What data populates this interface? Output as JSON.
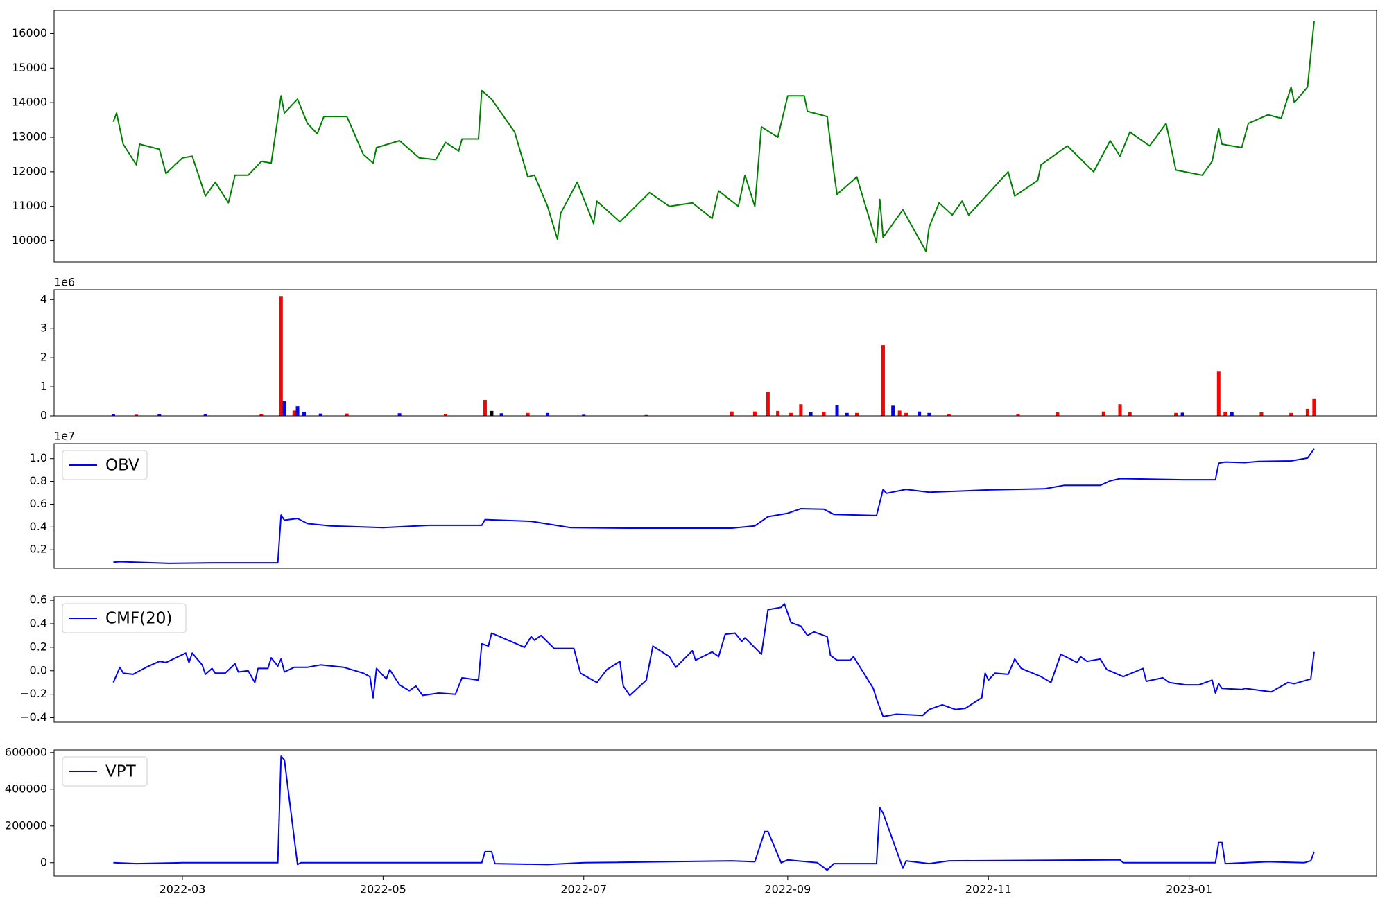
{
  "chart_data": [
    {
      "type": "line",
      "xlim": [
        "2022-01-21",
        "2023-02-27"
      ],
      "ylim": [
        9390,
        16670
      ],
      "yticks": [
        10000,
        11000,
        12000,
        13000,
        14000,
        15000,
        16000
      ],
      "x": [
        "2022-02-08",
        "2022-02-09",
        "2022-02-11",
        "2022-02-15",
        "2022-02-16",
        "2022-02-22",
        "2022-02-24",
        "2022-03-01",
        "2022-03-04",
        "2022-03-08",
        "2022-03-11",
        "2022-03-15",
        "2022-03-17",
        "2022-03-21",
        "2022-03-25",
        "2022-03-28",
        "2022-03-31",
        "2022-04-01",
        "2022-04-05",
        "2022-04-08",
        "2022-04-11",
        "2022-04-13",
        "2022-04-20",
        "2022-04-25",
        "2022-04-28",
        "2022-04-29",
        "2022-05-06",
        "2022-05-12",
        "2022-05-17",
        "2022-05-20",
        "2022-05-24",
        "2022-05-25",
        "2022-05-30",
        "2022-05-31",
        "2022-06-03",
        "2022-06-10",
        "2022-06-14",
        "2022-06-16",
        "2022-06-20",
        "2022-06-23",
        "2022-06-24",
        "2022-06-29",
        "2022-07-04",
        "2022-07-05",
        "2022-07-12",
        "2022-07-21",
        "2022-07-27",
        "2022-08-03",
        "2022-08-09",
        "2022-08-11",
        "2022-08-17",
        "2022-08-19",
        "2022-08-22",
        "2022-08-24",
        "2022-08-29",
        "2022-09-01",
        "2022-09-06",
        "2022-09-07",
        "2022-09-13",
        "2022-09-15",
        "2022-09-16",
        "2022-09-22",
        "2022-09-28",
        "2022-09-29",
        "2022-09-30",
        "2022-10-06",
        "2022-10-13",
        "2022-10-14",
        "2022-10-17",
        "2022-10-21",
        "2022-10-24",
        "2022-10-26",
        "2022-11-07",
        "2022-11-09",
        "2022-11-16",
        "2022-11-17",
        "2022-11-25",
        "2022-12-03",
        "2022-12-08",
        "2022-12-11",
        "2022-12-14",
        "2022-12-20",
        "2022-12-25",
        "2022-12-28",
        "2023-01-05",
        "2023-01-08",
        "2023-01-10",
        "2023-01-11",
        "2023-01-17",
        "2023-01-19",
        "2023-01-25",
        "2023-01-29",
        "2023-02-01",
        "2023-02-02",
        "2023-02-06",
        "2023-02-08"
      ],
      "series": [
        {
          "color": "#008000",
          "values": [
            13450,
            13700,
            12800,
            12200,
            12800,
            12650,
            11950,
            12400,
            12450,
            11300,
            11700,
            11100,
            11900,
            11900,
            12300,
            12250,
            14200,
            13700,
            14100,
            13400,
            13100,
            13600,
            13600,
            12500,
            12250,
            12700,
            12900,
            12400,
            12350,
            12850,
            12600,
            12950,
            12950,
            14350,
            14100,
            13150,
            11850,
            11900,
            11000,
            10050,
            10800,
            11700,
            10500,
            11150,
            10550,
            11400,
            11000,
            11100,
            10650,
            11450,
            11000,
            11900,
            11000,
            13300,
            13000,
            14200,
            14200,
            13750,
            13600,
            12000,
            11350,
            11850,
            9950,
            11200,
            10100,
            10900,
            9700,
            10400,
            11100,
            10750,
            11150,
            10750,
            12000,
            11300,
            11750,
            12200,
            12750,
            12000,
            12900,
            12450,
            13150,
            12750,
            13400,
            12050,
            11900,
            12300,
            13250,
            12800,
            12700,
            13400,
            13650,
            13550,
            14450,
            14000,
            14450,
            16350
          ]
        }
      ]
    },
    {
      "type": "bar",
      "xlim": [
        "2022-01-21",
        "2023-02-27"
      ],
      "ylim": [
        0,
        4340000
      ],
      "offset_label": "1e6",
      "yticks": [
        0,
        {
          "value": 1000000,
          "label": "1"
        },
        {
          "value": 2000000,
          "label": "2"
        },
        {
          "value": 3000000,
          "label": "3"
        },
        {
          "value": 4000000,
          "label": "4"
        }
      ],
      "x": [
        "2022-02-08",
        "2022-02-15",
        "2022-02-22",
        "2022-03-08",
        "2022-03-25",
        "2022-03-31",
        "2022-04-01",
        "2022-04-04",
        "2022-04-05",
        "2022-04-07",
        "2022-04-12",
        "2022-04-20",
        "2022-05-06",
        "2022-05-20",
        "2022-06-01",
        "2022-06-03",
        "2022-06-06",
        "2022-06-14",
        "2022-06-20",
        "2022-07-01",
        "2022-07-20",
        "2022-08-15",
        "2022-08-22",
        "2022-08-26",
        "2022-08-29",
        "2022-09-02",
        "2022-09-05",
        "2022-09-08",
        "2022-09-12",
        "2022-09-16",
        "2022-09-19",
        "2022-09-22",
        "2022-09-30",
        "2022-10-03",
        "2022-10-05",
        "2022-10-07",
        "2022-10-11",
        "2022-10-14",
        "2022-10-20",
        "2022-11-10",
        "2022-11-22",
        "2022-12-06",
        "2022-12-11",
        "2022-12-14",
        "2022-12-28",
        "2022-12-30",
        "2023-01-10",
        "2023-01-12",
        "2023-01-14",
        "2023-01-23",
        "2023-02-01",
        "2023-02-06",
        "2023-02-08"
      ],
      "values": [
        70000,
        40000,
        60000,
        50000,
        50000,
        4120000,
        500000,
        180000,
        330000,
        140000,
        80000,
        80000,
        90000,
        50000,
        550000,
        170000,
        90000,
        100000,
        100000,
        40000,
        30000,
        150000,
        150000,
        820000,
        170000,
        100000,
        400000,
        120000,
        140000,
        360000,
        100000,
        100000,
        2430000,
        350000,
        180000,
        100000,
        150000,
        100000,
        50000,
        50000,
        120000,
        150000,
        400000,
        130000,
        100000,
        110000,
        1520000,
        140000,
        130000,
        120000,
        100000,
        240000,
        600000
      ],
      "colors": [
        "#0000ff",
        "#ff0000",
        "#0000ff",
        "#0000ff",
        "#ff0000",
        "#ff0000",
        "#0000ff",
        "#ff0000",
        "#0000ff",
        "#0000ff",
        "#0000ff",
        "#ff0000",
        "#0000ff",
        "#ff0000",
        "#ff0000",
        "#000000",
        "#0000ff",
        "#ff0000",
        "#0000ff",
        "#0000ff",
        "#ff0000",
        "#ff0000",
        "#ff0000",
        "#ff0000",
        "#ff0000",
        "#ff0000",
        "#ff0000",
        "#0000ff",
        "#ff0000",
        "#0000ff",
        "#0000ff",
        "#ff0000",
        "#ff0000",
        "#0000ff",
        "#ff0000",
        "#ff0000",
        "#0000ff",
        "#0000ff",
        "#ff0000",
        "#ff0000",
        "#ff0000",
        "#ff0000",
        "#ff0000",
        "#ff0000",
        "#ff0000",
        "#0000ff",
        "#ff0000",
        "#ff0000",
        "#0000ff",
        "#ff0000",
        "#ff0000",
        "#ff0000",
        "#ff0000"
      ]
    },
    {
      "type": "line",
      "xlim": [
        "2022-01-21",
        "2023-02-27"
      ],
      "ylim": [
        370000,
        11320000
      ],
      "offset_label": "1e7",
      "yticks": [
        {
          "value": 2000000,
          "label": "0.2"
        },
        {
          "value": 4000000,
          "label": "0.4"
        },
        {
          "value": 6000000,
          "label": "0.6"
        },
        {
          "value": 8000000,
          "label": "0.8"
        },
        {
          "value": 10000000,
          "label": "1.0"
        }
      ],
      "x": [
        "2022-02-08",
        "2022-02-10",
        "2022-02-25",
        "2022-03-10",
        "2022-03-30",
        "2022-03-31",
        "2022-04-01",
        "2022-04-05",
        "2022-04-08",
        "2022-04-15",
        "2022-05-01",
        "2022-05-15",
        "2022-05-31",
        "2022-06-01",
        "2022-06-15",
        "2022-06-27",
        "2022-07-15",
        "2022-08-15",
        "2022-08-22",
        "2022-08-26",
        "2022-09-01",
        "2022-09-05",
        "2022-09-12",
        "2022-09-15",
        "2022-09-28",
        "2022-09-30",
        "2022-10-01",
        "2022-10-07",
        "2022-10-14",
        "2022-11-01",
        "2022-11-18",
        "2022-11-24",
        "2022-12-05",
        "2022-12-08",
        "2022-12-11",
        "2022-12-30",
        "2023-01-09",
        "2023-01-10",
        "2023-01-12",
        "2023-01-18",
        "2023-01-22",
        "2023-02-01",
        "2023-02-06",
        "2023-02-08"
      ],
      "series": [
        {
          "name": "OBV",
          "color": "#0000ff",
          "values": [
            900000,
            950000,
            800000,
            850000,
            850000,
            5050000,
            4600000,
            4750000,
            4300000,
            4100000,
            3950000,
            4150000,
            4150000,
            4650000,
            4500000,
            3950000,
            3900000,
            3900000,
            4100000,
            4900000,
            5200000,
            5600000,
            5550000,
            5100000,
            5000000,
            7300000,
            6950000,
            7300000,
            7050000,
            7250000,
            7350000,
            7650000,
            7650000,
            8050000,
            8250000,
            8150000,
            8150000,
            9600000,
            9700000,
            9650000,
            9750000,
            9800000,
            10050000,
            10850000
          ]
        }
      ]
    },
    {
      "type": "line",
      "xlim": [
        "2022-01-21",
        "2023-02-27"
      ],
      "ylim": [
        -0.438,
        0.63
      ],
      "yticks": [
        {
          "value": -0.4,
          "label": "−0.4"
        },
        {
          "value": -0.2,
          "label": "−0.2"
        },
        {
          "value": 0,
          "label": "0.0"
        },
        0.2,
        0.4,
        0.6
      ],
      "x": [
        "2022-02-08",
        "2022-02-10",
        "2022-02-11",
        "2022-02-14",
        "2022-02-18",
        "2022-02-22",
        "2022-02-24",
        "2022-03-02",
        "2022-03-03",
        "2022-03-04",
        "2022-03-07",
        "2022-03-08",
        "2022-03-10",
        "2022-03-11",
        "2022-03-14",
        "2022-03-17",
        "2022-03-18",
        "2022-03-21",
        "2022-03-23",
        "2022-03-24",
        "2022-03-27",
        "2022-03-28",
        "2022-03-30",
        "2022-03-31",
        "2022-04-01",
        "2022-04-04",
        "2022-04-08",
        "2022-04-12",
        "2022-04-19",
        "2022-04-25",
        "2022-04-27",
        "2022-04-28",
        "2022-04-29",
        "2022-05-02",
        "2022-05-03",
        "2022-05-06",
        "2022-05-09",
        "2022-05-11",
        "2022-05-13",
        "2022-05-18",
        "2022-05-23",
        "2022-05-25",
        "2022-05-30",
        "2022-05-31",
        "2022-06-02",
        "2022-06-03",
        "2022-06-08",
        "2022-06-13",
        "2022-06-15",
        "2022-06-16",
        "2022-06-18",
        "2022-06-22",
        "2022-06-28",
        "2022-06-30",
        "2022-07-05",
        "2022-07-08",
        "2022-07-12",
        "2022-07-13",
        "2022-07-15",
        "2022-07-20",
        "2022-07-22",
        "2022-07-27",
        "2022-07-29",
        "2022-08-03",
        "2022-08-04",
        "2022-08-09",
        "2022-08-11",
        "2022-08-13",
        "2022-08-16",
        "2022-08-18",
        "2022-08-19",
        "2022-08-24",
        "2022-08-26",
        "2022-08-30",
        "2022-08-31",
        "2022-09-02",
        "2022-09-05",
        "2022-09-07",
        "2022-09-09",
        "2022-09-13",
        "2022-09-14",
        "2022-09-16",
        "2022-09-20",
        "2022-09-21",
        "2022-09-27",
        "2022-09-28",
        "2022-09-30",
        "2022-10-04",
        "2022-10-12",
        "2022-10-14",
        "2022-10-18",
        "2022-10-22",
        "2022-10-25",
        "2022-10-30",
        "2022-10-31",
        "2022-11-01",
        "2022-11-03",
        "2022-11-07",
        "2022-11-09",
        "2022-11-11",
        "2022-11-17",
        "2022-11-20",
        "2022-11-23",
        "2022-11-28",
        "2022-11-29",
        "2022-12-01",
        "2022-12-05",
        "2022-12-07",
        "2022-12-12",
        "2022-12-18",
        "2022-12-19",
        "2022-12-24",
        "2022-12-26",
        "2022-12-31",
        "2023-01-04",
        "2023-01-08",
        "2023-01-09",
        "2023-01-10",
        "2023-01-11",
        "2023-01-17",
        "2023-01-18",
        "2023-01-26",
        "2023-01-31",
        "2023-02-02",
        "2023-02-07",
        "2023-02-08"
      ],
      "series": [
        {
          "name": "CMF(20)",
          "color": "#0000ff",
          "values": [
            -0.1,
            0.03,
            -0.02,
            -0.03,
            0.03,
            0.08,
            0.07,
            0.15,
            0.07,
            0.15,
            0.05,
            -0.03,
            0.02,
            -0.02,
            -0.02,
            0.06,
            -0.01,
            0.0,
            -0.1,
            0.02,
            0.02,
            0.11,
            0.04,
            0.1,
            -0.01,
            0.03,
            0.03,
            0.05,
            0.03,
            -0.02,
            -0.05,
            -0.23,
            0.02,
            -0.07,
            0.01,
            -0.12,
            -0.17,
            -0.13,
            -0.21,
            -0.19,
            -0.2,
            -0.06,
            -0.08,
            0.23,
            0.21,
            0.32,
            0.26,
            0.2,
            0.29,
            0.26,
            0.3,
            0.19,
            0.19,
            -0.02,
            -0.1,
            0.01,
            0.08,
            -0.13,
            -0.21,
            -0.08,
            0.21,
            0.12,
            0.03,
            0.17,
            0.09,
            0.16,
            0.12,
            0.31,
            0.32,
            0.25,
            0.28,
            0.14,
            0.52,
            0.54,
            0.57,
            0.41,
            0.38,
            0.3,
            0.33,
            0.29,
            0.13,
            0.09,
            0.09,
            0.12,
            -0.15,
            -0.24,
            -0.39,
            -0.37,
            -0.38,
            -0.33,
            -0.29,
            -0.33,
            -0.32,
            -0.23,
            -0.02,
            -0.08,
            -0.02,
            -0.03,
            0.1,
            0.02,
            -0.05,
            -0.1,
            0.14,
            0.07,
            0.12,
            0.08,
            0.1,
            0.01,
            -0.05,
            0.02,
            -0.09,
            -0.06,
            -0.1,
            -0.12,
            -0.12,
            -0.08,
            -0.19,
            -0.11,
            -0.15,
            -0.16,
            -0.15,
            -0.18,
            -0.1,
            -0.11,
            -0.07,
            0.16
          ]
        }
      ]
    },
    {
      "type": "line",
      "xlim": [
        "2022-01-21",
        "2023-02-27"
      ],
      "ylim": [
        -72600,
        614500
      ],
      "yticks": [
        0,
        200000,
        400000,
        600000
      ],
      "xticks": [
        {
          "value": "2022-03-01",
          "label": "2022-03"
        },
        {
          "value": "2022-05-01",
          "label": "2022-05"
        },
        {
          "value": "2022-07-01",
          "label": "2022-07"
        },
        {
          "value": "2022-09-01",
          "label": "2022-09"
        },
        {
          "value": "2022-11-01",
          "label": "2022-11"
        },
        {
          "value": "2023-01-01",
          "label": "2023-01"
        }
      ],
      "x": [
        "2022-02-08",
        "2022-02-15",
        "2022-03-01",
        "2022-03-30",
        "2022-03-31",
        "2022-04-01",
        "2022-04-05",
        "2022-04-06",
        "2022-05-31",
        "2022-06-01",
        "2022-06-03",
        "2022-06-04",
        "2022-06-20",
        "2022-07-01",
        "2022-08-15",
        "2022-08-22",
        "2022-08-25",
        "2022-08-26",
        "2022-08-30",
        "2022-09-01",
        "2022-09-10",
        "2022-09-13",
        "2022-09-15",
        "2022-09-28",
        "2022-09-29",
        "2022-09-30",
        "2022-10-06",
        "2022-10-07",
        "2022-10-14",
        "2022-10-20",
        "2022-12-08",
        "2022-12-11",
        "2022-12-12",
        "2023-01-09",
        "2023-01-10",
        "2023-01-11",
        "2023-01-12",
        "2023-01-25",
        "2023-02-05",
        "2023-02-07",
        "2023-02-08"
      ],
      "series": [
        {
          "name": "VPT",
          "color": "#0000ff",
          "values": [
            0,
            -5000,
            0,
            0,
            580000,
            560000,
            -10000,
            0,
            0,
            60000,
            60000,
            -5000,
            -10000,
            0,
            10000,
            5000,
            170000,
            170000,
            0,
            15000,
            0,
            -40000,
            -5000,
            -5000,
            300000,
            270000,
            -30000,
            10000,
            -5000,
            10000,
            15000,
            15000,
            0,
            0,
            110000,
            110000,
            -5000,
            5000,
            0,
            10000,
            60000
          ]
        }
      ]
    }
  ]
}
